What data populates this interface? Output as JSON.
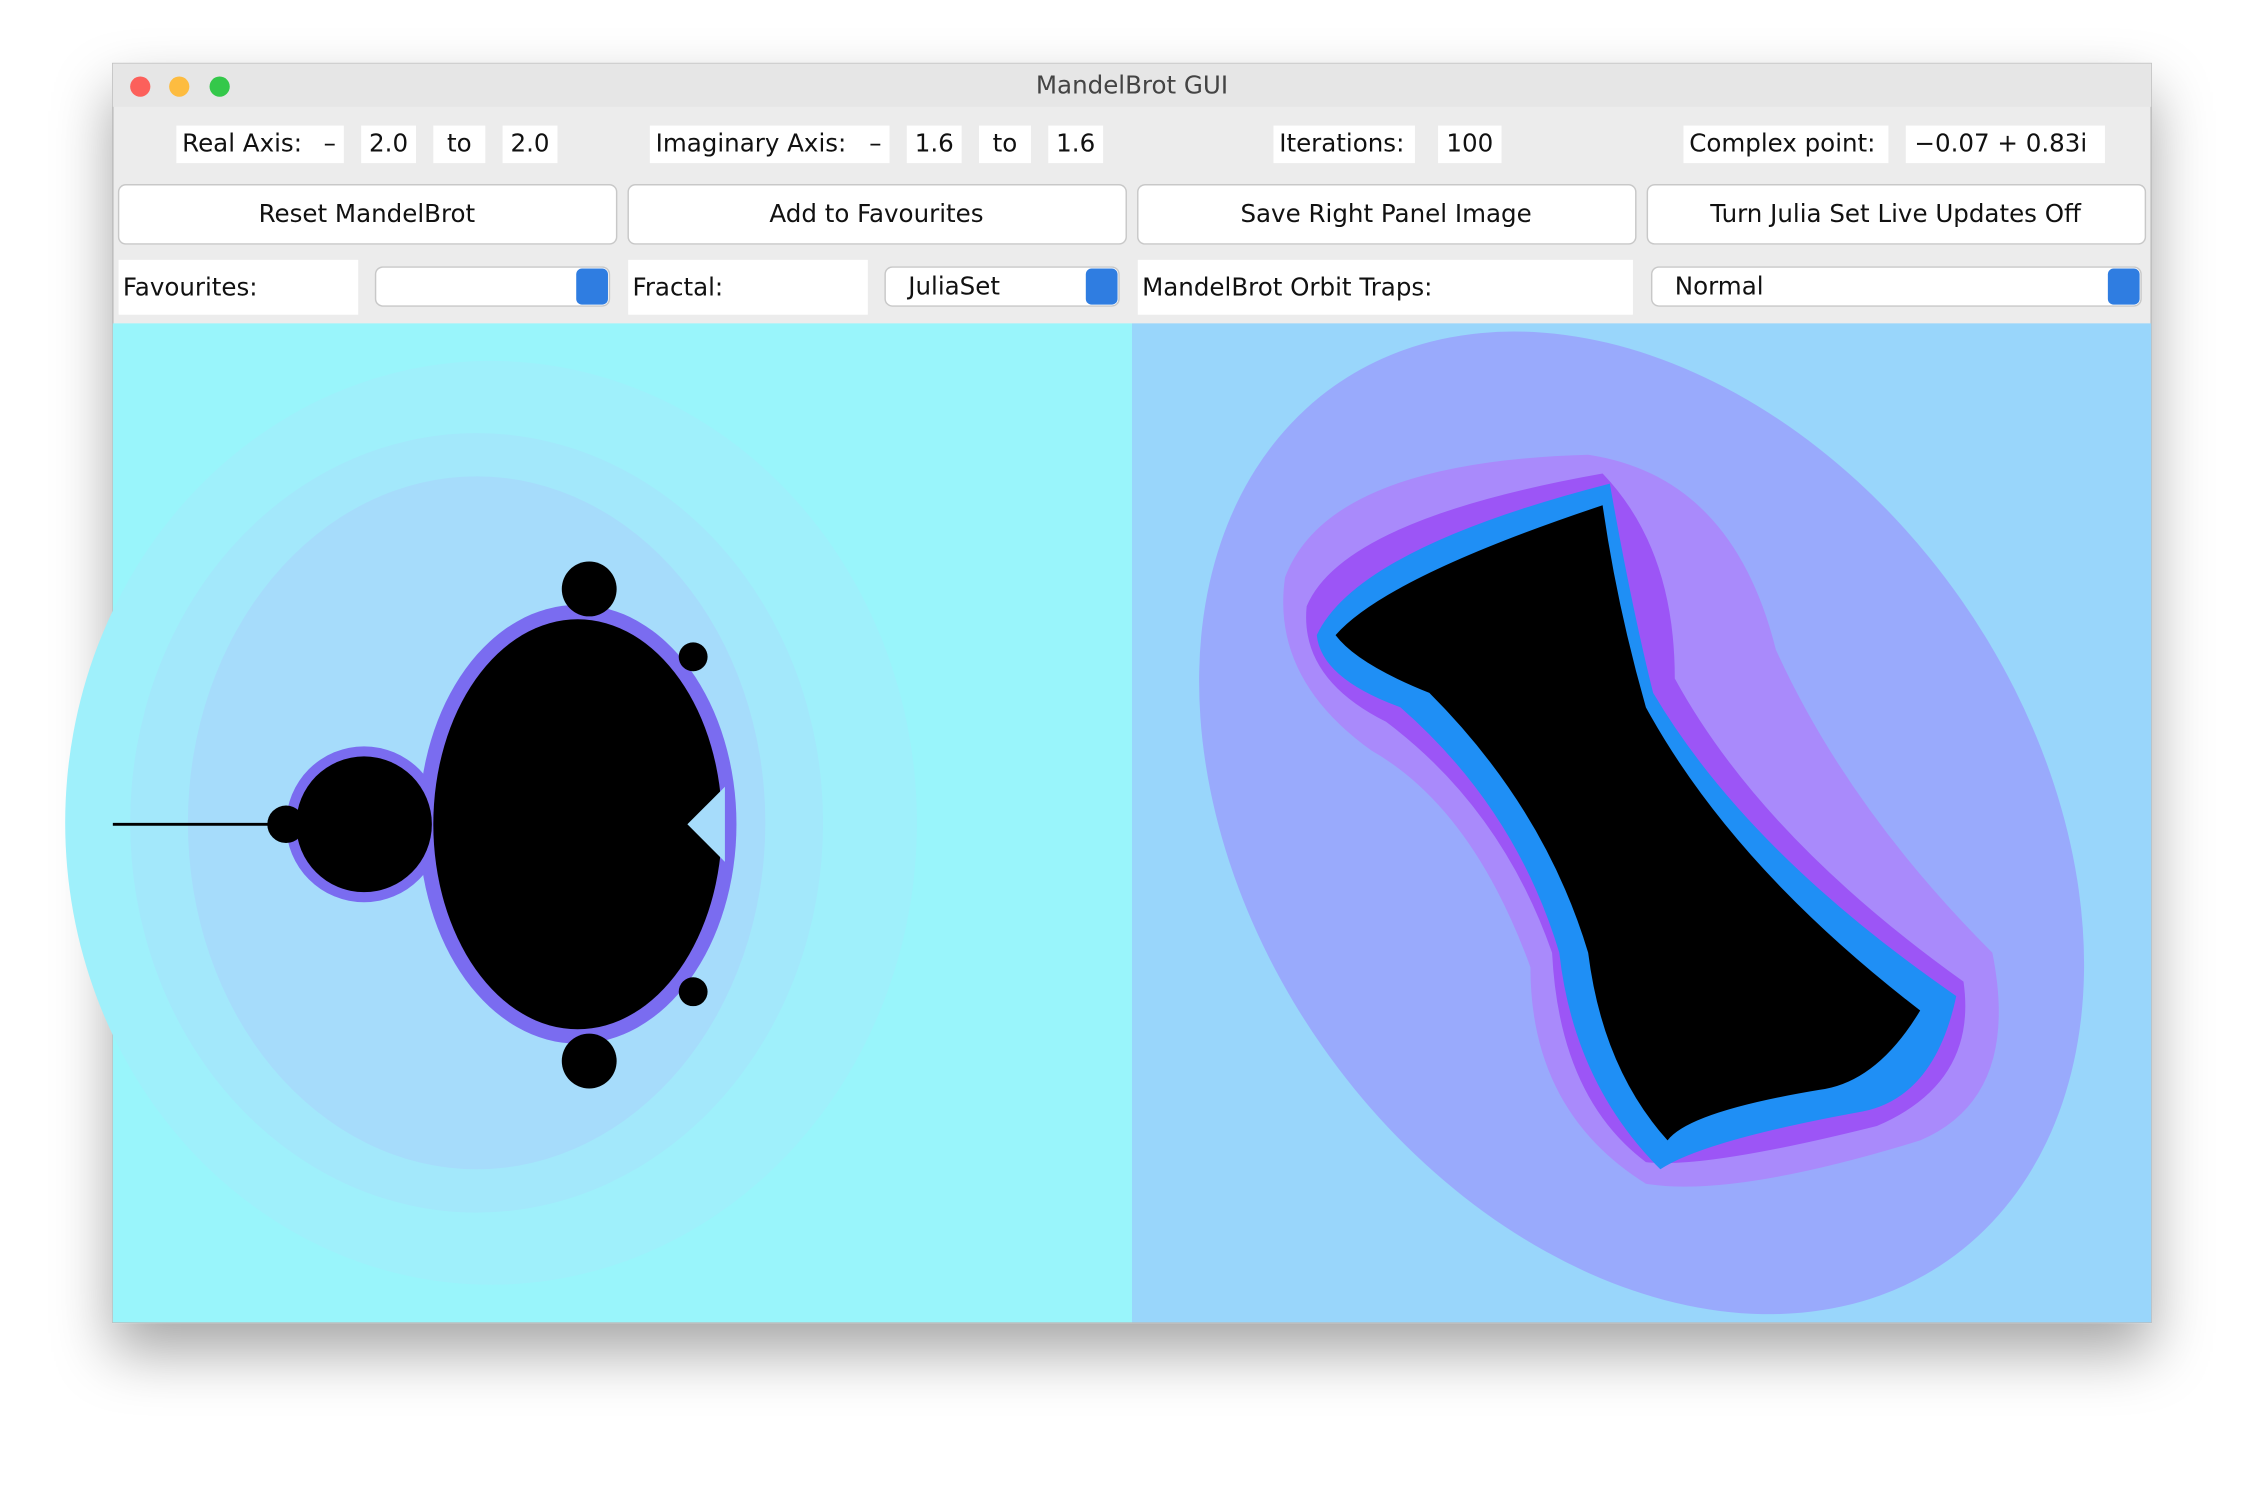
{
  "window": {
    "title": "MandelBrot GUI"
  },
  "fields": {
    "real_axis_label": "Real Axis:",
    "real_sign": "–",
    "real_min": "2.0",
    "real_to": "to",
    "real_max": "2.0",
    "imag_axis_label": "Imaginary Axis:",
    "imag_sign": "–",
    "imag_min": "1.6",
    "imag_to": "to",
    "imag_max": "1.6",
    "iterations_label": "Iterations:",
    "iterations": "100",
    "complex_point_label": "Complex point:",
    "complex_point": "−0.07 + 0.83i"
  },
  "buttons": [
    "Reset MandelBrot",
    "Add to Favourites",
    "Save Right Panel Image",
    "Turn Julia Set Live Updates Off"
  ],
  "selectors": {
    "favourites_label": "Favourites:",
    "fractal_label": "Fractal:",
    "fractal": "JuliaSet",
    "orbit_traps_label": "MandelBrot Orbit Traps:",
    "orbit_traps": "Normal"
  }
}
